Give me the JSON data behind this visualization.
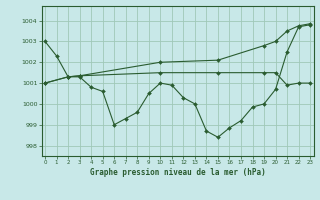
{
  "background_color": "#c8e8e8",
  "grid_color": "#a0c8b8",
  "line_color": "#2a5c30",
  "title": "Graphe pression niveau de la mer (hPa)",
  "xlim": [
    -0.3,
    23.3
  ],
  "ylim": [
    997.5,
    1004.7
  ],
  "yticks": [
    998,
    999,
    1000,
    1001,
    1002,
    1003,
    1004
  ],
  "xticks": [
    0,
    1,
    2,
    3,
    4,
    5,
    6,
    7,
    8,
    9,
    10,
    11,
    12,
    13,
    14,
    15,
    16,
    17,
    18,
    19,
    20,
    21,
    22,
    23
  ],
  "line1_x": [
    0,
    1,
    2,
    3,
    4,
    5,
    6,
    7,
    8,
    9,
    10,
    11,
    12,
    13,
    14,
    15,
    16,
    17,
    18,
    19,
    20,
    21,
    22,
    23
  ],
  "line1_y": [
    1003.0,
    1002.3,
    1001.3,
    1001.3,
    1000.8,
    1000.6,
    999.0,
    999.3,
    999.6,
    1000.5,
    1001.0,
    1000.9,
    1000.3,
    1000.0,
    998.7,
    998.4,
    998.85,
    999.2,
    999.85,
    1000.0,
    1000.7,
    1002.5,
    1003.7,
    1003.8
  ],
  "line2_x": [
    0,
    2,
    3,
    10,
    15,
    19,
    20,
    21,
    22,
    23
  ],
  "line2_y": [
    1001.0,
    1001.3,
    1001.35,
    1002.0,
    1002.1,
    1002.8,
    1003.0,
    1003.5,
    1003.75,
    1003.85
  ],
  "line3_x": [
    0,
    2,
    3,
    10,
    15,
    19,
    20,
    21,
    22,
    23
  ],
  "line3_y": [
    1001.0,
    1001.3,
    1001.35,
    1001.5,
    1001.5,
    1001.5,
    1001.5,
    1000.9,
    1001.0,
    1001.0
  ]
}
